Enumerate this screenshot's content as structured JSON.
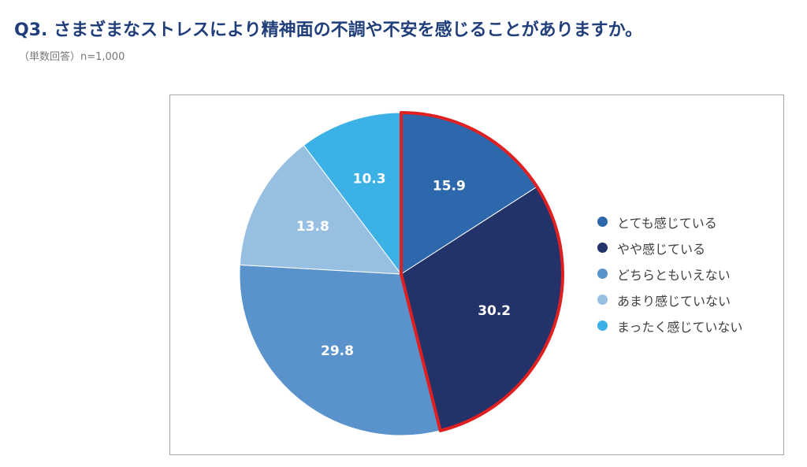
{
  "header": {
    "title": "Q3. さまざまなストレスにより精神面の不調や不安を感じることがありますか。",
    "subtitle": "（単数回答）n=1,000"
  },
  "chart_data": {
    "type": "pie",
    "categories": [
      "とても感じている",
      "やや感じている",
      "どちらともいえない",
      "あまり感じていない",
      "まったく感じていない"
    ],
    "values": [
      15.9,
      30.2,
      29.8,
      13.8,
      10.3
    ],
    "labels": [
      "15.9",
      "30.2",
      "29.8",
      "13.8",
      "10.3"
    ],
    "colors": [
      "#2e68ac",
      "#23336a",
      "#5a93cc",
      "#97bfe2",
      "#3bb1e6"
    ],
    "highlight": {
      "categories": [
        "とても感じている",
        "やや感じている"
      ],
      "stroke_color": "#e02020"
    },
    "start_angle_deg": 0,
    "direction": "clockwise",
    "legend_position": "right"
  },
  "legend": {
    "items": [
      {
        "label": "とても感じている",
        "color": "#2e68ac"
      },
      {
        "label": "やや感じている",
        "color": "#23336a"
      },
      {
        "label": "どちらともいえない",
        "color": "#5a93cc"
      },
      {
        "label": "あまり感じていない",
        "color": "#97bfe2"
      },
      {
        "label": "まったく感じていない",
        "color": "#3bb1e6"
      }
    ]
  }
}
